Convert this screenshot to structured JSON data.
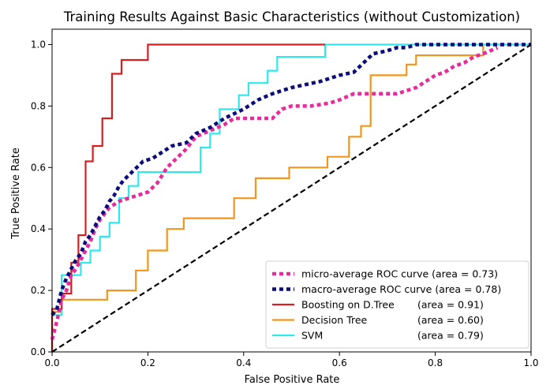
{
  "chart_data": {
    "type": "line",
    "title": "Training Results Against Basic Characteristics (without Customization)",
    "xlabel": "False Positive Rate",
    "ylabel": "True Positive Rate",
    "xlim": [
      0.0,
      1.0
    ],
    "ylim": [
      0.0,
      1.05
    ],
    "xticks": [
      "0.0",
      "0.2",
      "0.4",
      "0.6",
      "0.8",
      "1.0"
    ],
    "yticks": [
      "0.0",
      "0.2",
      "0.4",
      "0.6",
      "0.8",
      "1.0"
    ],
    "grid": false,
    "legend_position": "lower-right",
    "series": [
      {
        "name": "micro-average ROC curve",
        "area_label": "(area = 0.73)",
        "color": "#ea2a9a",
        "style": "dotted",
        "x": [
          0.0,
          0.01,
          0.02,
          0.03,
          0.04,
          0.05,
          0.06,
          0.07,
          0.08,
          0.09,
          0.1,
          0.12,
          0.14,
          0.16,
          0.18,
          0.2,
          0.22,
          0.24,
          0.26,
          0.28,
          0.3,
          0.33,
          0.36,
          0.38,
          0.42,
          0.46,
          0.48,
          0.5,
          0.54,
          0.58,
          0.6,
          0.63,
          0.66,
          0.7,
          0.72,
          0.74,
          0.76,
          0.78,
          0.8,
          0.82,
          0.84,
          0.86,
          0.88,
          0.9,
          0.93
        ],
        "y": [
          0.04,
          0.1,
          0.17,
          0.2,
          0.25,
          0.27,
          0.3,
          0.33,
          0.36,
          0.4,
          0.43,
          0.47,
          0.49,
          0.5,
          0.51,
          0.52,
          0.55,
          0.6,
          0.63,
          0.66,
          0.7,
          0.72,
          0.74,
          0.76,
          0.76,
          0.76,
          0.79,
          0.8,
          0.8,
          0.81,
          0.82,
          0.84,
          0.84,
          0.84,
          0.84,
          0.85,
          0.86,
          0.88,
          0.9,
          0.91,
          0.93,
          0.94,
          0.96,
          0.97,
          0.99
        ]
      },
      {
        "name": "macro-average ROC curve",
        "area_label": "(area = 0.78)",
        "color": "#0c0c7a",
        "style": "dotted",
        "x": [
          0.0,
          0.01,
          0.02,
          0.03,
          0.04,
          0.05,
          0.06,
          0.07,
          0.08,
          0.09,
          0.1,
          0.11,
          0.12,
          0.13,
          0.14,
          0.15,
          0.17,
          0.19,
          0.21,
          0.23,
          0.25,
          0.28,
          0.3,
          0.33,
          0.36,
          0.4,
          0.43,
          0.46,
          0.5,
          0.53,
          0.56,
          0.6,
          0.63,
          0.65,
          0.67,
          0.7,
          0.72,
          0.74,
          0.76,
          0.8,
          0.84,
          0.88,
          0.92,
          0.96,
          1.0
        ],
        "y": [
          0.12,
          0.14,
          0.2,
          0.24,
          0.27,
          0.3,
          0.32,
          0.36,
          0.38,
          0.41,
          0.44,
          0.46,
          0.49,
          0.51,
          0.54,
          0.56,
          0.59,
          0.62,
          0.63,
          0.65,
          0.67,
          0.68,
          0.71,
          0.73,
          0.76,
          0.79,
          0.82,
          0.84,
          0.86,
          0.87,
          0.88,
          0.9,
          0.91,
          0.94,
          0.97,
          0.98,
          0.99,
          0.99,
          1.0,
          1.0,
          1.0,
          1.0,
          1.0,
          1.0,
          1.0
        ]
      },
      {
        "name": "Boosting on D.Tree",
        "area_label": "(area = 0.91)",
        "color": "#d42020",
        "style": "step",
        "x": [
          0.0,
          0.0,
          0.02,
          0.02,
          0.04,
          0.04,
          0.055,
          0.055,
          0.07,
          0.07,
          0.085,
          0.085,
          0.105,
          0.105,
          0.125,
          0.125,
          0.145,
          0.145,
          0.2,
          0.2,
          0.28,
          0.28,
          0.57
        ],
        "y": [
          0.0,
          0.14,
          0.14,
          0.19,
          0.19,
          0.29,
          0.29,
          0.38,
          0.38,
          0.62,
          0.62,
          0.67,
          0.67,
          0.76,
          0.76,
          0.905,
          0.905,
          0.95,
          0.95,
          1.0,
          1.0,
          1.0,
          1.0
        ]
      },
      {
        "name": "Decision Tree",
        "area_label": "(area = 0.60)",
        "color": "#f0961c",
        "style": "step",
        "x": [
          0.0,
          0.0,
          0.02,
          0.02,
          0.115,
          0.115,
          0.175,
          0.175,
          0.2,
          0.2,
          0.24,
          0.24,
          0.275,
          0.275,
          0.38,
          0.38,
          0.425,
          0.425,
          0.495,
          0.495,
          0.575,
          0.575,
          0.62,
          0.62,
          0.645,
          0.645,
          0.665,
          0.665,
          0.74,
          0.74,
          0.76,
          0.76,
          0.9,
          0.9,
          1.0
        ],
        "y": [
          0.0,
          0.13,
          0.13,
          0.17,
          0.17,
          0.2,
          0.2,
          0.265,
          0.265,
          0.33,
          0.33,
          0.4,
          0.4,
          0.435,
          0.435,
          0.5,
          0.5,
          0.565,
          0.565,
          0.6,
          0.6,
          0.635,
          0.635,
          0.7,
          0.7,
          0.735,
          0.735,
          0.9,
          0.9,
          0.935,
          0.935,
          0.965,
          0.965,
          1.0,
          1.0
        ]
      },
      {
        "name": "SVM",
        "area_label": "(area = 0.79)",
        "color": "#2ee8ee",
        "style": "step",
        "x": [
          0.0,
          0.0,
          0.02,
          0.02,
          0.06,
          0.06,
          0.08,
          0.08,
          0.1,
          0.1,
          0.12,
          0.12,
          0.14,
          0.14,
          0.16,
          0.16,
          0.18,
          0.18,
          0.31,
          0.31,
          0.33,
          0.33,
          0.35,
          0.35,
          0.39,
          0.39,
          0.41,
          0.41,
          0.45,
          0.45,
          0.47,
          0.47,
          0.51,
          0.51,
          0.53,
          0.53,
          0.57,
          0.57,
          1.0
        ],
        "y": [
          0.0,
          0.12,
          0.12,
          0.25,
          0.25,
          0.29,
          0.29,
          0.33,
          0.33,
          0.375,
          0.375,
          0.42,
          0.42,
          0.5,
          0.5,
          0.54,
          0.54,
          0.585,
          0.585,
          0.665,
          0.665,
          0.71,
          0.71,
          0.79,
          0.79,
          0.835,
          0.835,
          0.875,
          0.875,
          0.915,
          0.915,
          0.96,
          0.96,
          0.96,
          0.96,
          0.96,
          0.96,
          1.0,
          1.0
        ]
      },
      {
        "name": "",
        "color": "#000000",
        "style": "dashed",
        "x": [
          0.0,
          1.0
        ],
        "y": [
          0.0,
          1.0
        ]
      }
    ]
  }
}
